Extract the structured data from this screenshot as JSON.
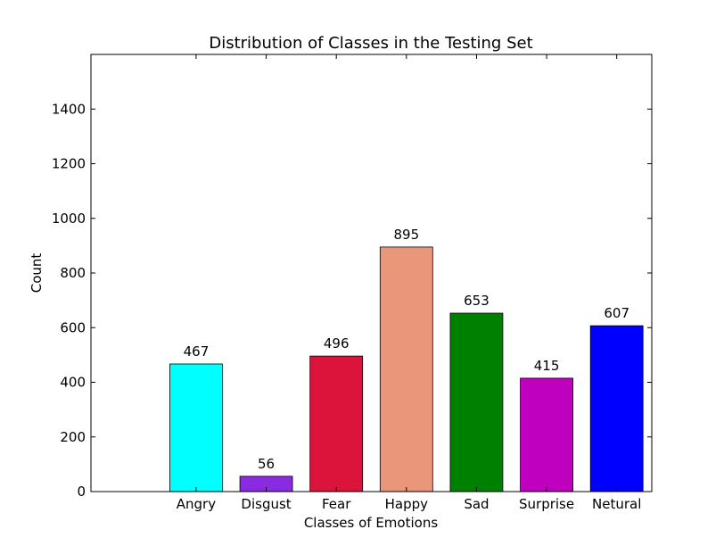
{
  "chart_data": {
    "type": "bar",
    "title": "Distribution of Classes in the Testing Set",
    "xlabel": "Classes of Emotions",
    "ylabel": "Count",
    "categories": [
      "Angry",
      "Disgust",
      "Fear",
      "Happy",
      "Sad",
      "Surprise",
      "Netural"
    ],
    "values": [
      467,
      56,
      496,
      895,
      653,
      415,
      607
    ],
    "colors": [
      "#00ffff",
      "#8a2be2",
      "#dc143c",
      "#e9967a",
      "#008000",
      "#bf00bf",
      "#0000ff"
    ],
    "yticks": [
      0,
      200,
      400,
      600,
      800,
      1000,
      1200,
      1400
    ],
    "ylim": [
      0,
      1600
    ],
    "xlim": [
      -0.5,
      7.5
    ],
    "grid": false,
    "legend": "none"
  }
}
